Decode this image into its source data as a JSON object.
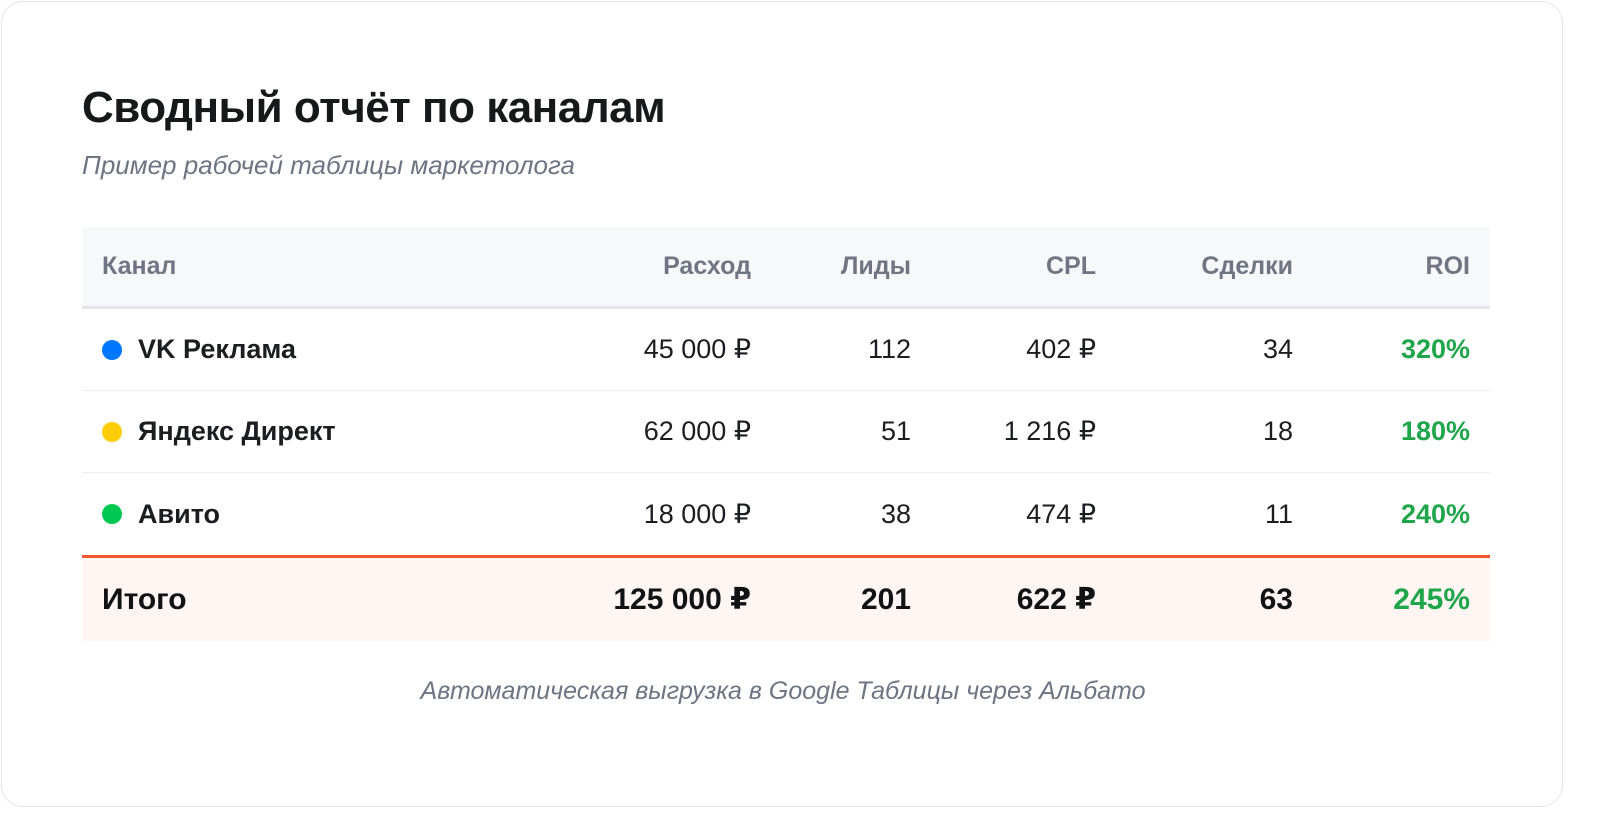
{
  "title": "Сводный отчёт по каналам",
  "subtitle": "Пример рабочей таблицы маркетолога",
  "table": {
    "headers": {
      "channel": "Канал",
      "spend": "Расход",
      "leads": "Лиды",
      "cpl": "CPL",
      "deals": "Сделки",
      "roi": "ROI"
    },
    "rows": [
      {
        "channel": "VK Реклама",
        "dot_color": "#0077ff",
        "spend": "45 000 ₽",
        "leads": "112",
        "cpl": "402 ₽",
        "deals": "34",
        "roi": "320%"
      },
      {
        "channel": "Яндекс Директ",
        "dot_color": "#ffcc00",
        "spend": "62 000 ₽",
        "leads": "51",
        "cpl": "1 216 ₽",
        "deals": "18",
        "roi": "180%"
      },
      {
        "channel": "Авито",
        "dot_color": "#00c853",
        "spend": "18 000 ₽",
        "leads": "38",
        "cpl": "474 ₽",
        "deals": "11",
        "roi": "240%"
      }
    ],
    "total": {
      "channel": "Итого",
      "spend": "125 000 ₽",
      "leads": "201",
      "cpl": "622 ₽",
      "deals": "63",
      "roi": "245%"
    }
  },
  "footnote": "Автоматическая выгрузка в Google Таблицы через Альбато",
  "colors": {
    "accent_total_border": "#f2572e",
    "roi_positive": "#1fa64a",
    "total_row_bg": "#fff5f3",
    "header_bg": "#f7f8fa"
  }
}
